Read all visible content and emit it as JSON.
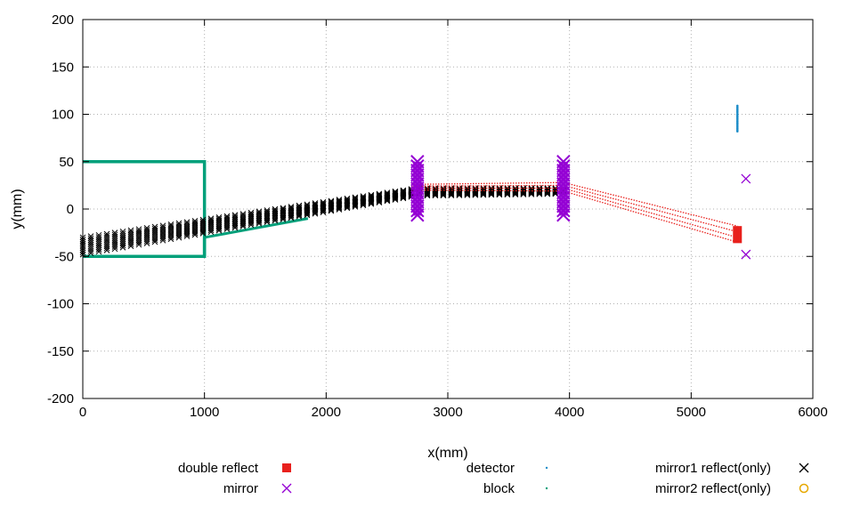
{
  "chart_data": {
    "type": "scatter",
    "title": "",
    "xlabel": "x(mm)",
    "ylabel": "y(mm)",
    "xlim": [
      0,
      6000
    ],
    "ylim": [
      -200,
      200
    ],
    "xticks": [
      0,
      1000,
      2000,
      3000,
      4000,
      5000,
      6000
    ],
    "yticks": [
      -200,
      -150,
      -100,
      -50,
      0,
      50,
      100,
      150,
      200
    ],
    "grid": true,
    "legend_position": "bottom",
    "series": [
      {
        "name": "double reflect",
        "marker": "filled-square",
        "color": "#e8201c",
        "rays": [
          [
            [
              2700,
              26
            ],
            [
              3950,
              28
            ],
            [
              5380,
              -18
            ]
          ],
          [
            [
              2700,
              24
            ],
            [
              3950,
              25
            ],
            [
              5380,
              -24
            ]
          ],
          [
            [
              2700,
              22
            ],
            [
              3950,
              22
            ],
            [
              5380,
              -30
            ]
          ],
          [
            [
              2700,
              20
            ],
            [
              3950,
              19
            ],
            [
              5380,
              -35
            ]
          ]
        ],
        "end_points_x": 5380,
        "end_points_y": [
          -18,
          -36
        ]
      },
      {
        "name": "mirror",
        "marker": "x",
        "color": "#9400d3",
        "points": [
          [
            5450,
            32
          ],
          [
            5450,
            -48
          ]
        ],
        "mirror1_x": 2750,
        "mirror2_x": 3950,
        "mirror_y_range": [
          -7,
          50
        ]
      },
      {
        "name": "detector",
        "marker": "dot",
        "color": "#1f8ec9",
        "x": 5380,
        "y_range": [
          82,
          110
        ]
      },
      {
        "name": "block",
        "marker": "dot",
        "color": "#00a07a",
        "polyline": [
          [
            0,
            50
          ],
          [
            1000,
            50
          ],
          [
            1000,
            -50
          ],
          [
            0,
            -50
          ]
        ],
        "lower_wedge": [
          [
            1000,
            -30
          ],
          [
            1850,
            -10
          ]
        ]
      },
      {
        "name": "mirror1 reflect(only)",
        "marker": "x",
        "color": "#000000",
        "band": [
          [
            [
              0,
              -30
            ],
            [
              2750,
              22
            ],
            [
              3950,
              22
            ]
          ],
          [
            [
              0,
              -48
            ],
            [
              2750,
              14
            ],
            [
              3950,
              16
            ]
          ]
        ]
      },
      {
        "name": "mirror2 reflect(only)",
        "marker": "circle",
        "color": "#e6a800",
        "points": []
      }
    ]
  }
}
